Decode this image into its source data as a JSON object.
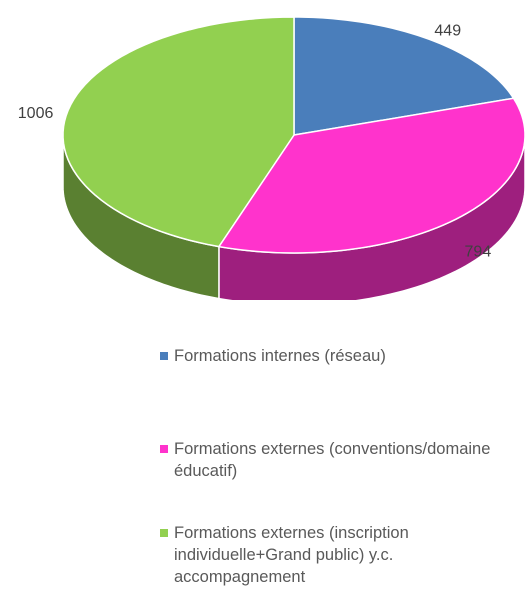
{
  "chart_data": {
    "type": "pie3d",
    "categories": [
      "Formations internes (réseau)",
      "Formations externes (conventions/domaine éducatif)",
      "Formations externes (inscription individuelle+Grand public) y.c. accompagnement"
    ],
    "values": [
      449,
      794,
      1006
    ],
    "colors": [
      "#4a7ebb",
      "#ff33cc",
      "#92d050"
    ]
  }
}
